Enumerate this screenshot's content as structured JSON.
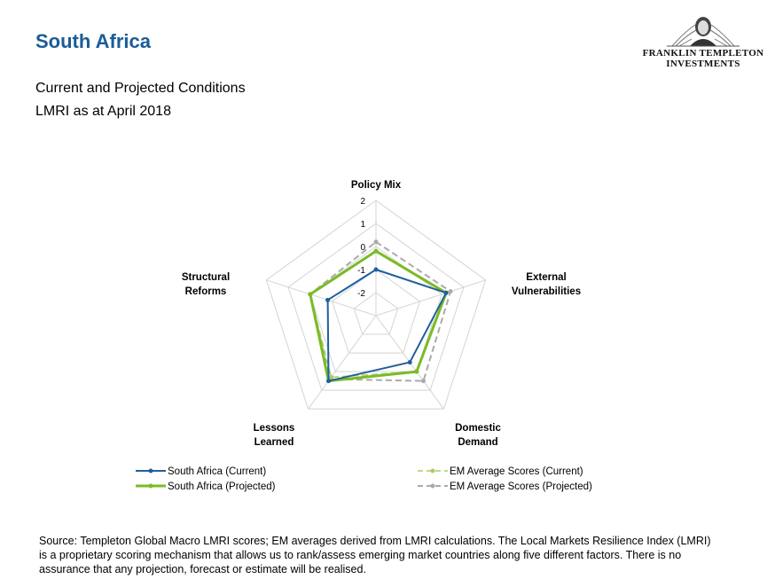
{
  "header": {
    "title": "South Africa",
    "subtitle_line1": "Current and Projected Conditions",
    "subtitle_line2": "LMRI as at April 2018"
  },
  "logo": {
    "icon": "benjamin-franklin-portrait-icon",
    "line1": "FRANKLIN TEMPLETON",
    "line2": "INVESTMENTS"
  },
  "footer": {
    "source": "Source: Templeton Global Macro LMRI scores; EM averages derived from LMRI calculations. The Local Markets Resilience Index (LMRI) is a proprietary scoring mechanism that allows us to rank/assess emerging market countries along five different factors. There is no assurance that any projection, forecast or estimate will be realised."
  },
  "chart_data": {
    "type": "radar",
    "axes": [
      [
        "Policy Mix"
      ],
      [
        "External",
        "Vulnerabilities"
      ],
      [
        "Domestic",
        "Demand"
      ],
      [
        "Lessons",
        "Learned"
      ],
      [
        "Structural",
        "Reforms"
      ]
    ],
    "ticks": [
      "-2",
      "-1",
      "0",
      "1",
      "2"
    ],
    "rlim": [
      -3,
      2
    ],
    "grid": true,
    "legend_position": "bottom",
    "series": [
      {
        "name": "South Africa (Current)",
        "values": [
          -1.0,
          0.2,
          -0.5,
          0.5,
          -0.8
        ],
        "color": "#1f5f9e",
        "dash": false,
        "width": 2
      },
      {
        "name": "South Africa (Projected)",
        "values": [
          -0.2,
          0.2,
          0.0,
          0.5,
          0.0
        ],
        "color": "#7bbb25",
        "dash": false,
        "width": 3
      },
      {
        "name": "EM Average Scores (Current)",
        "values": [
          -0.2,
          0.2,
          0.0,
          0.3,
          0.0
        ],
        "color": "#a9cc63",
        "dash": true,
        "width": 1.5
      },
      {
        "name": "EM Average Scores (Projected)",
        "values": [
          0.2,
          0.4,
          0.5,
          0.4,
          0.0
        ],
        "color": "#aaaaaa",
        "dash": true,
        "width": 2
      }
    ]
  }
}
